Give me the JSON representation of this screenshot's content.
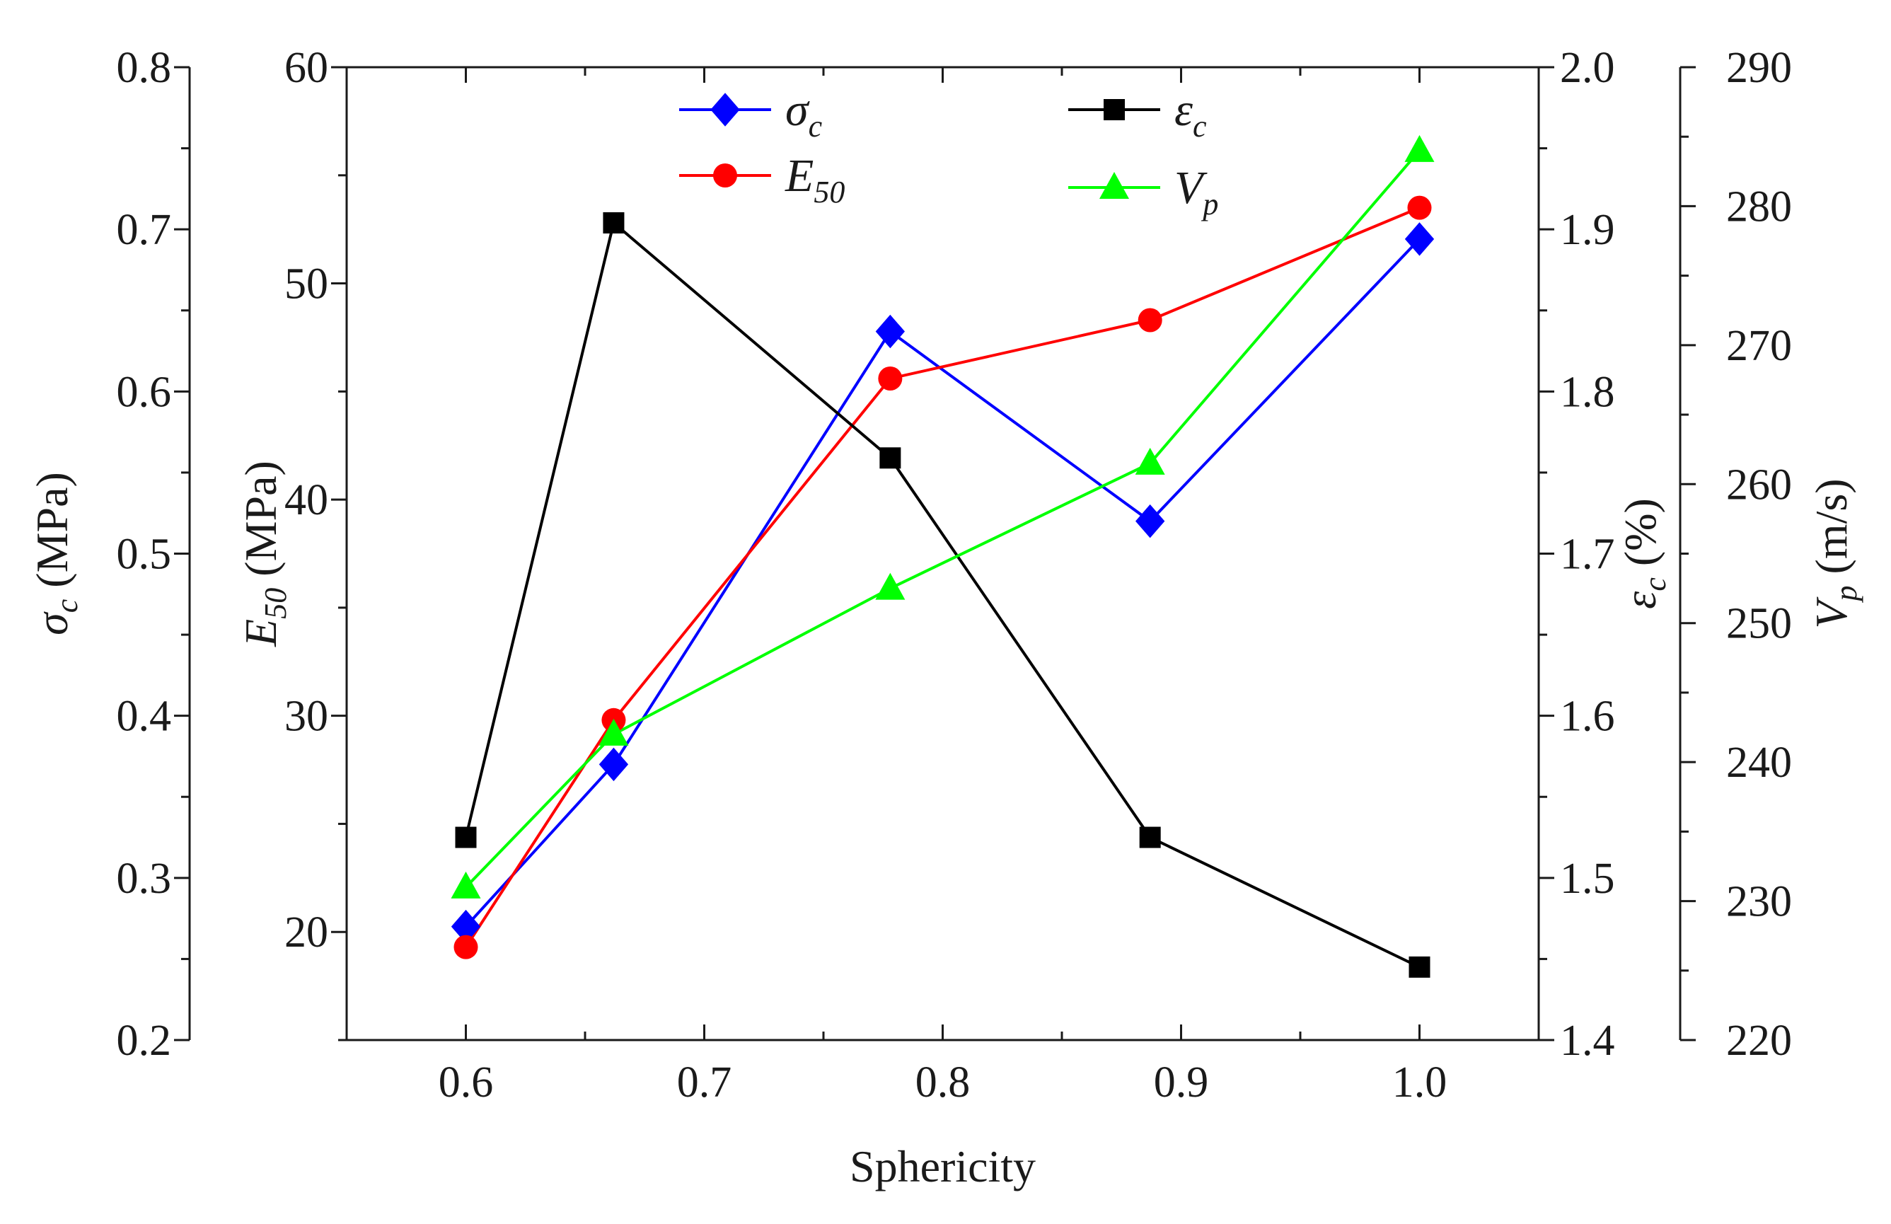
{
  "chart_data": {
    "type": "line",
    "xlabel": "Sphericity",
    "x": [
      0.6,
      0.662,
      0.778,
      0.887,
      1.0
    ],
    "x_ticks": [
      "0.6",
      "0.7",
      "0.8",
      "0.9",
      "1.0"
    ],
    "xlim": [
      0.55,
      1.05
    ],
    "axes": [
      {
        "id": "sigma",
        "label_main": "σ",
        "label_sub": "c",
        "label_unit": " (MPa)",
        "lim": [
          0.2,
          0.8
        ],
        "ticks": [
          "0.2",
          "0.3",
          "0.4",
          "0.5",
          "0.6",
          "0.7",
          "0.8"
        ]
      },
      {
        "id": "e50",
        "label_main": "E",
        "label_sub": "50",
        "label_unit": " (MPa)",
        "lim": [
          15,
          60
        ],
        "ticks": [
          "20",
          "30",
          "40",
          "50",
          "60"
        ]
      },
      {
        "id": "eps",
        "label_main": "ε",
        "label_sub": "c",
        "label_unit": " (%)",
        "lim": [
          1.4,
          2.0
        ],
        "ticks": [
          "1.4",
          "1.5",
          "1.6",
          "1.7",
          "1.8",
          "1.9",
          "2.0"
        ]
      },
      {
        "id": "vp",
        "label_main": "V",
        "label_sub": "p",
        "label_unit": " (m/s)",
        "lim": [
          220,
          290
        ],
        "ticks": [
          "220",
          "230",
          "240",
          "250",
          "260",
          "270",
          "280",
          "290"
        ]
      }
    ],
    "series": [
      {
        "name": "σ",
        "sub": "c",
        "axis": "sigma",
        "color": "#0000ff",
        "marker": "diamond",
        "values": [
          0.27,
          0.37,
          0.637,
          0.52,
          0.694
        ]
      },
      {
        "name": "E",
        "sub": "50",
        "axis": "e50",
        "color": "#ff0000",
        "marker": "circle",
        "values": [
          19.3,
          29.8,
          45.6,
          48.3,
          53.5
        ]
      },
      {
        "name": "ε",
        "sub": "c",
        "axis": "eps",
        "color": "#000000",
        "marker": "square",
        "values": [
          1.525,
          1.904,
          1.759,
          1.525,
          1.445
        ]
      },
      {
        "name": "V",
        "sub": "p",
        "axis": "vp",
        "color": "#00ff00",
        "marker": "triangle",
        "values": [
          231,
          242,
          252.5,
          261.5,
          284
        ]
      }
    ]
  }
}
